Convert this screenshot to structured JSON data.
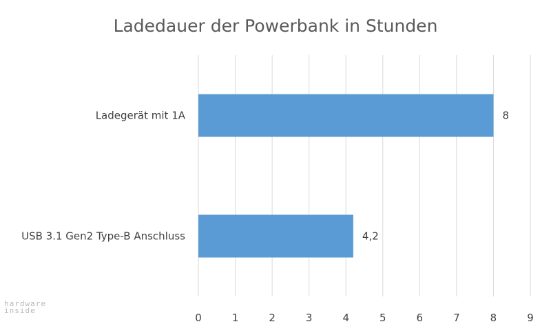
{
  "chart_data": {
    "type": "bar",
    "orientation": "horizontal",
    "title": "Ladedauer der Powerbank in Stunden",
    "categories": [
      "Ladegerät mit 1A",
      "USB 3.1 Gen2 Type-B Anschluss"
    ],
    "values": [
      8,
      4.2
    ],
    "data_labels": [
      "8",
      "4,2"
    ],
    "xlim": [
      0,
      9
    ],
    "xticks": [
      "0",
      "1",
      "2",
      "3",
      "4",
      "5",
      "6",
      "7",
      "8",
      "9"
    ],
    "grid": true,
    "legend": "none",
    "colors": {
      "bar": "#5b9bd5",
      "grid": "#d9d9d9",
      "text": "#404040"
    }
  },
  "watermark": {
    "line1": "hardware",
    "line2": "inside"
  }
}
